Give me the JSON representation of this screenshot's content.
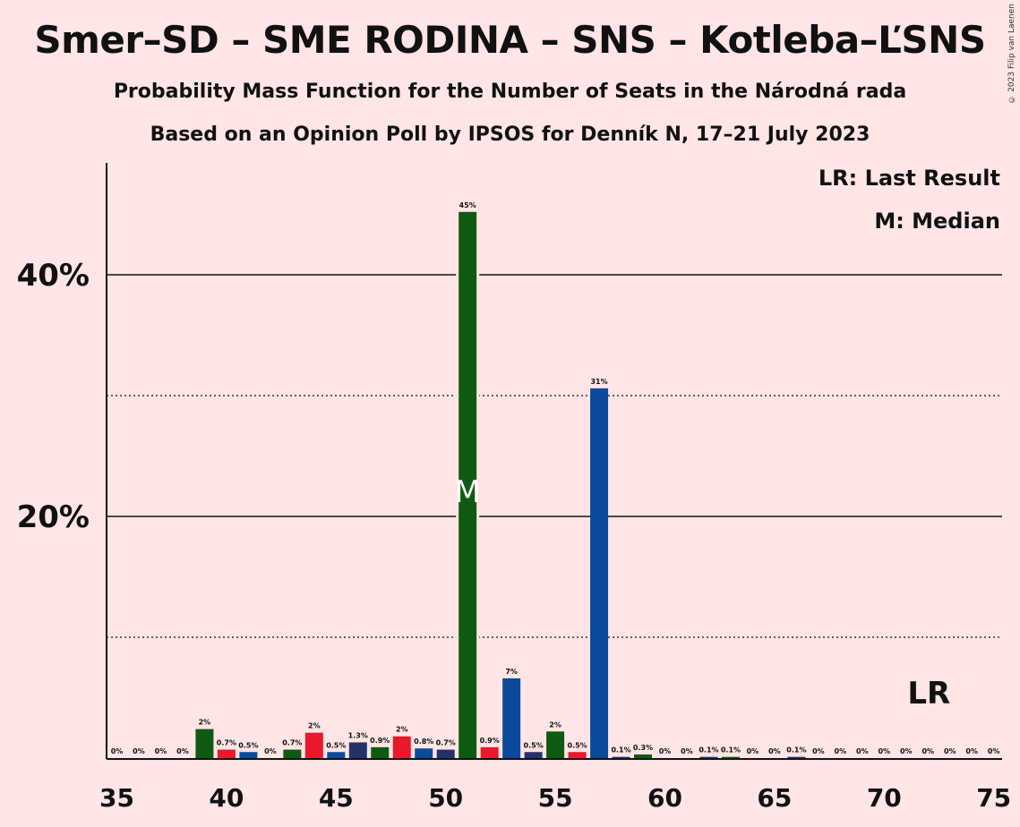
{
  "title": "Smer–SD – SME RODINA – SNS – Kotleba–ĽSNS",
  "subtitle1": "Probability Mass Function for the Number of Seats in the Národná rada",
  "subtitle2": "Based on an Opinion Poll by IPSOS for Denník N, 17–21 July 2023",
  "copyright": "© 2023 Filip van Laenen",
  "legend": {
    "last_result": "LR: Last Result",
    "median": "M: Median"
  },
  "markers": {
    "median_label": "M",
    "median_seat": 51,
    "last_result_label": "LR",
    "last_result_seat": 72
  },
  "colors": {
    "background": "#ffe5e5",
    "green": "#0e5a12",
    "red": "#e8192b",
    "blue": "#0b4a9b",
    "navy": "#22336b"
  },
  "chart_data": {
    "type": "bar",
    "xlim": [
      35,
      75
    ],
    "ylim": [
      0,
      49
    ],
    "y_ticks": [
      {
        "value": 20,
        "label": "20%"
      },
      {
        "value": 40,
        "label": "40%"
      }
    ],
    "y_minor_gridlines": [
      10,
      30
    ],
    "x_ticks": [
      35,
      40,
      45,
      50,
      55,
      60,
      65,
      70,
      75
    ],
    "bars": [
      {
        "seat": 35,
        "value": 0,
        "label": "0%",
        "color": "green"
      },
      {
        "seat": 36,
        "value": 0,
        "label": "0%",
        "color": "red"
      },
      {
        "seat": 37,
        "value": 0,
        "label": "0%",
        "color": "blue"
      },
      {
        "seat": 38,
        "value": 0,
        "label": "0%",
        "color": "navy"
      },
      {
        "seat": 39,
        "value": 2.4,
        "label": "2%",
        "color": "green"
      },
      {
        "seat": 40,
        "value": 0.7,
        "label": "0.7%",
        "color": "red"
      },
      {
        "seat": 41,
        "value": 0.5,
        "label": "0.5%",
        "color": "blue"
      },
      {
        "seat": 42,
        "value": 0,
        "label": "0%",
        "color": "navy"
      },
      {
        "seat": 43,
        "value": 0.7,
        "label": "0.7%",
        "color": "green"
      },
      {
        "seat": 44,
        "value": 2.1,
        "label": "2%",
        "color": "red"
      },
      {
        "seat": 45,
        "value": 0.5,
        "label": "0.5%",
        "color": "blue"
      },
      {
        "seat": 46,
        "value": 1.3,
        "label": "1.3%",
        "color": "navy"
      },
      {
        "seat": 47,
        "value": 0.9,
        "label": "0.9%",
        "color": "green"
      },
      {
        "seat": 48,
        "value": 1.8,
        "label": "2%",
        "color": "red"
      },
      {
        "seat": 49,
        "value": 0.8,
        "label": "0.8%",
        "color": "blue"
      },
      {
        "seat": 50,
        "value": 0.7,
        "label": "0.7%",
        "color": "navy"
      },
      {
        "seat": 51,
        "value": 45.2,
        "label": "45%",
        "color": "green"
      },
      {
        "seat": 52,
        "value": 0.9,
        "label": "0.9%",
        "color": "red"
      },
      {
        "seat": 53,
        "value": 6.6,
        "label": "7%",
        "color": "blue"
      },
      {
        "seat": 54,
        "value": 0.5,
        "label": "0.5%",
        "color": "navy"
      },
      {
        "seat": 55,
        "value": 2.2,
        "label": "2%",
        "color": "green"
      },
      {
        "seat": 56,
        "value": 0.5,
        "label": "0.5%",
        "color": "red"
      },
      {
        "seat": 57,
        "value": 30.6,
        "label": "31%",
        "color": "blue"
      },
      {
        "seat": 58,
        "value": 0.1,
        "label": "0.1%",
        "color": "navy"
      },
      {
        "seat": 59,
        "value": 0.3,
        "label": "0.3%",
        "color": "green"
      },
      {
        "seat": 60,
        "value": 0,
        "label": "0%",
        "color": "red"
      },
      {
        "seat": 61,
        "value": 0,
        "label": "0%",
        "color": "blue"
      },
      {
        "seat": 62,
        "value": 0.1,
        "label": "0.1%",
        "color": "navy"
      },
      {
        "seat": 63,
        "value": 0.1,
        "label": "0.1%",
        "color": "green"
      },
      {
        "seat": 64,
        "value": 0,
        "label": "0%",
        "color": "red"
      },
      {
        "seat": 65,
        "value": 0,
        "label": "0%",
        "color": "blue"
      },
      {
        "seat": 66,
        "value": 0.1,
        "label": "0.1%",
        "color": "navy"
      },
      {
        "seat": 67,
        "value": 0,
        "label": "0%",
        "color": "green"
      },
      {
        "seat": 68,
        "value": 0,
        "label": "0%",
        "color": "red"
      },
      {
        "seat": 69,
        "value": 0,
        "label": "0%",
        "color": "blue"
      },
      {
        "seat": 70,
        "value": 0,
        "label": "0%",
        "color": "navy"
      },
      {
        "seat": 71,
        "value": 0,
        "label": "0%",
        "color": "green"
      },
      {
        "seat": 72,
        "value": 0,
        "label": "0%",
        "color": "red"
      },
      {
        "seat": 73,
        "value": 0,
        "label": "0%",
        "color": "blue"
      },
      {
        "seat": 74,
        "value": 0,
        "label": "0%",
        "color": "navy"
      },
      {
        "seat": 75,
        "value": 0,
        "label": "0%",
        "color": "green"
      }
    ]
  }
}
